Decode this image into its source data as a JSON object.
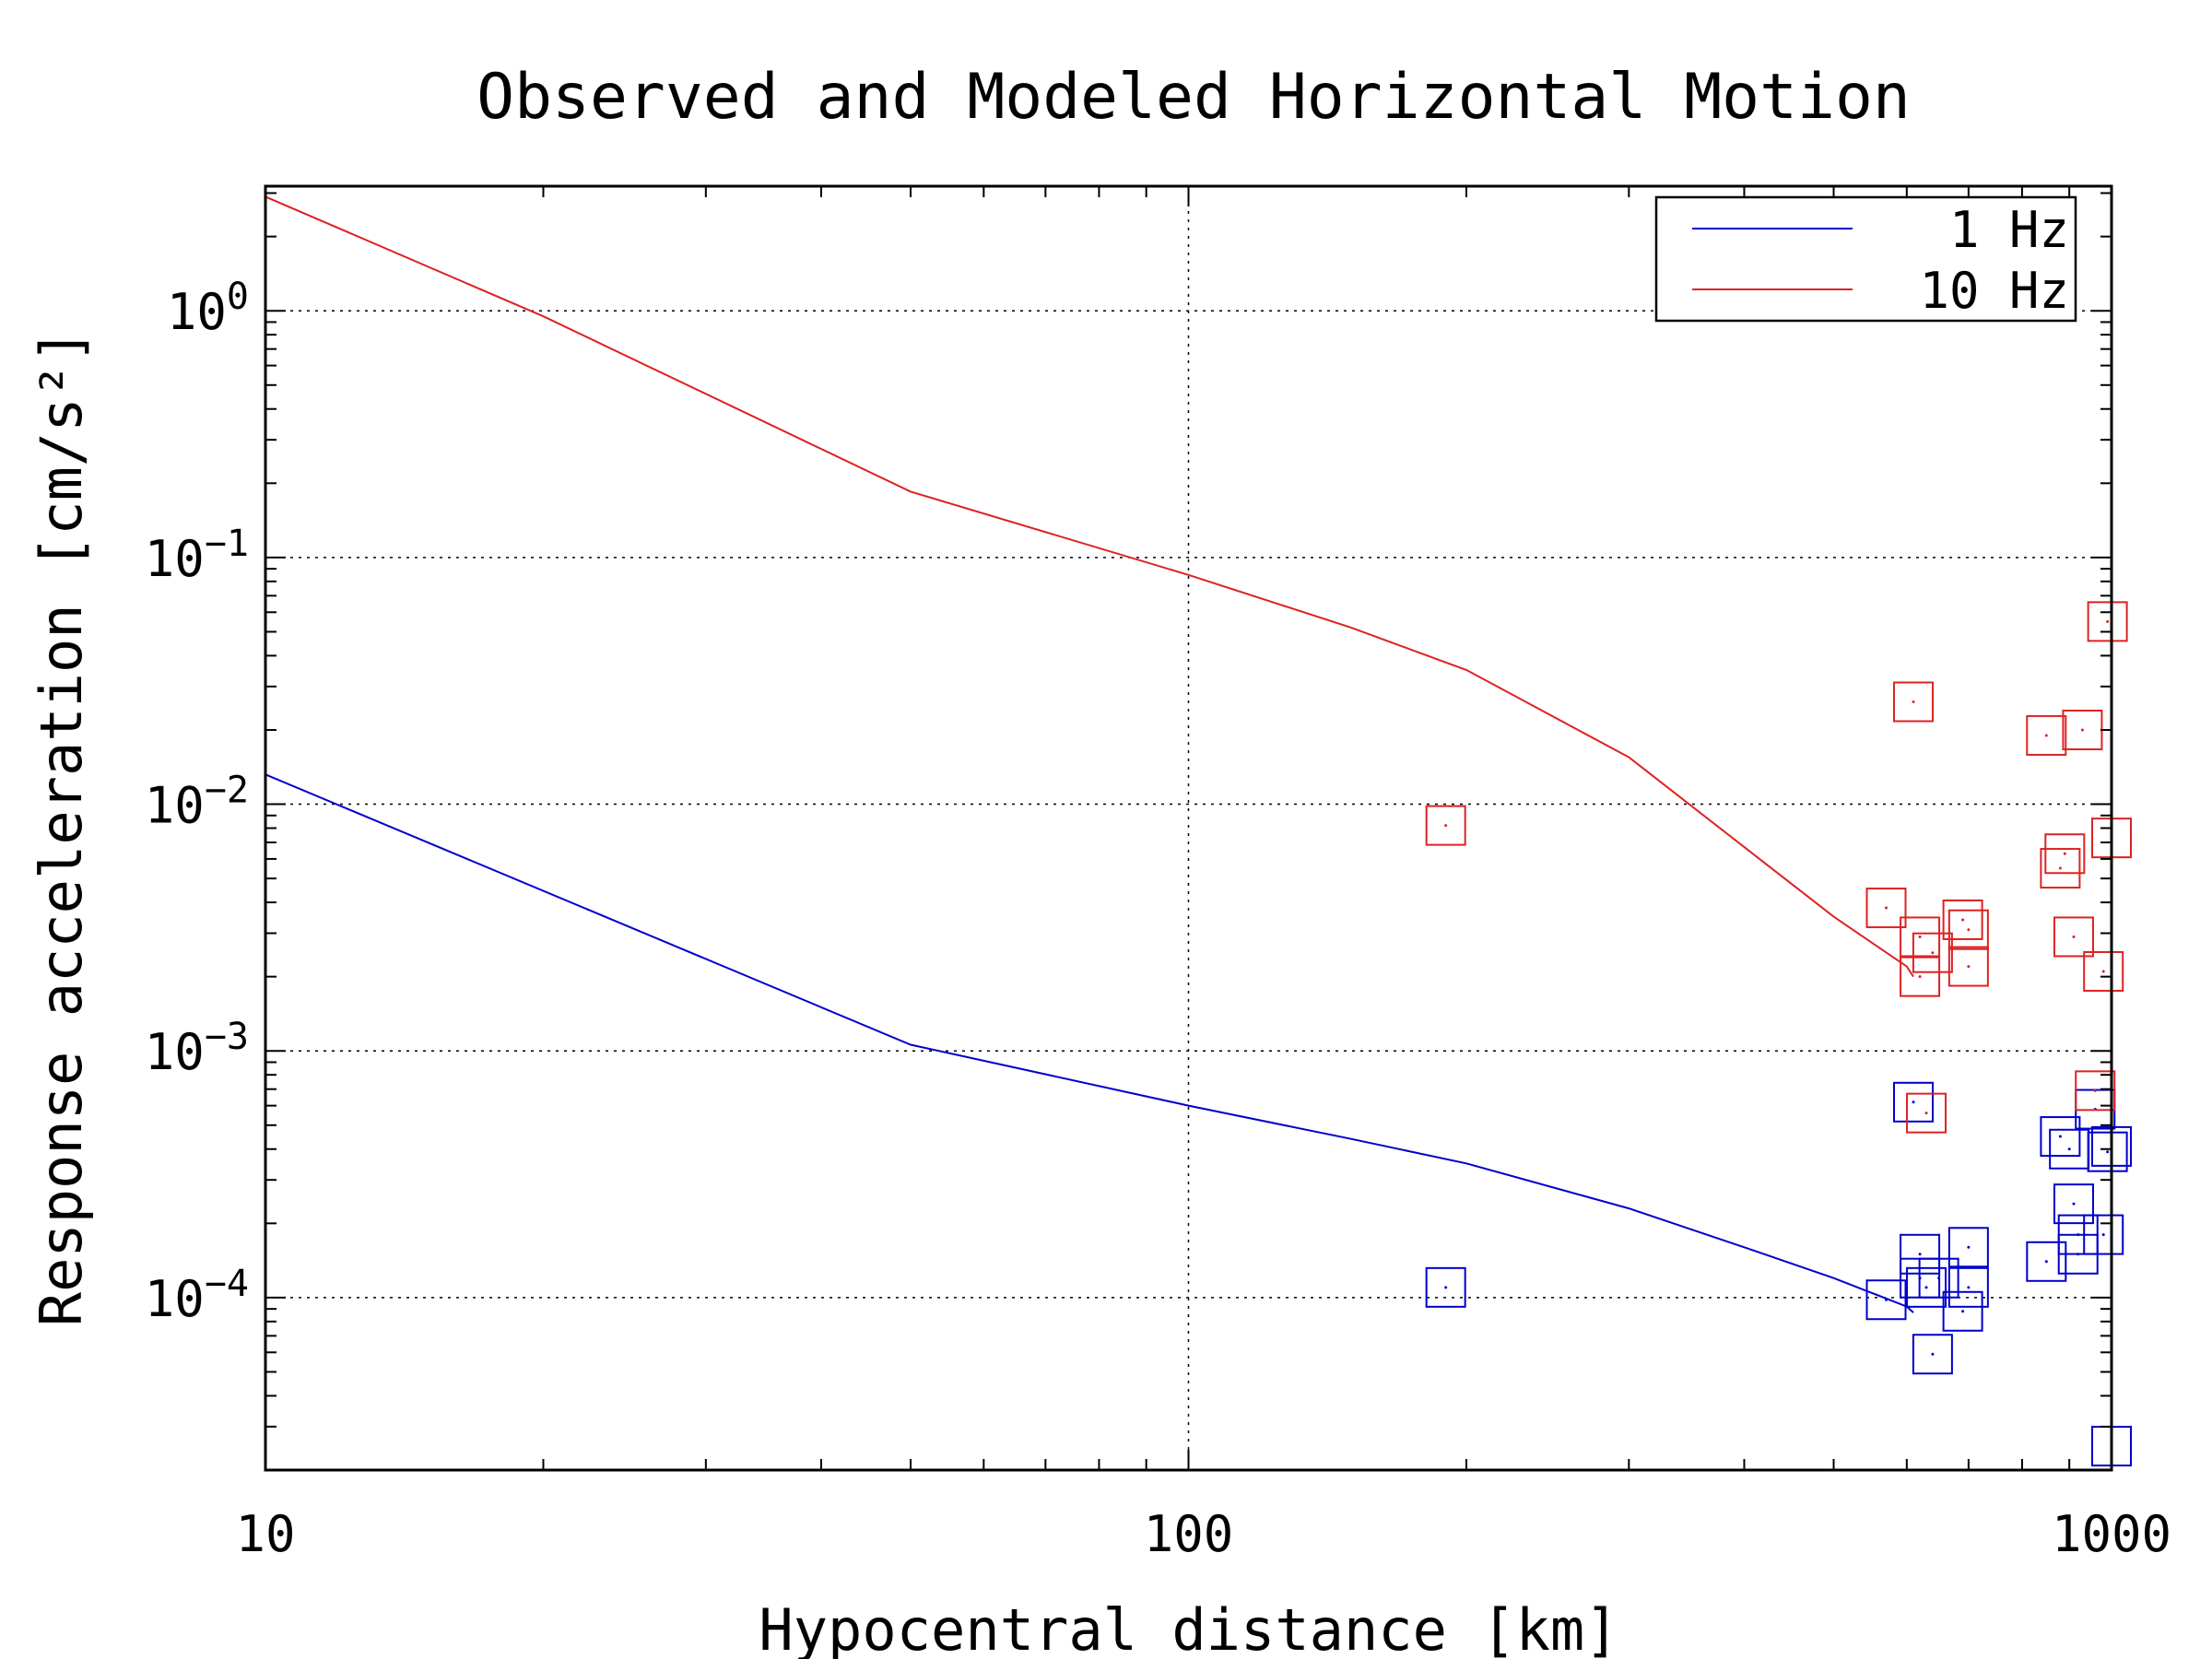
{
  "chart_data": {
    "type": "scatter",
    "title": "Observed and Modeled Horizontal Motion",
    "xlabel": "Hypocentral distance [km]",
    "ylabel": "Response acceleration [cm/s²]",
    "xscale": "log",
    "yscale": "log",
    "xlim": [
      10,
      1000
    ],
    "ylim": [
      2e-05,
      3.2
    ],
    "grid": true,
    "legend_position": "top-right",
    "x_ticks": [
      {
        "value": 10,
        "label": "10"
      },
      {
        "value": 100,
        "label": "100"
      },
      {
        "value": 1000,
        "label": "1000"
      }
    ],
    "y_ticks": [
      {
        "value": 1,
        "base": "10",
        "exp": "0"
      },
      {
        "value": 0.1,
        "base": "10",
        "exp": "−1"
      },
      {
        "value": 0.01,
        "base": "10",
        "exp": "−2"
      },
      {
        "value": 0.001,
        "base": "10",
        "exp": "−3"
      },
      {
        "value": 0.0001,
        "base": "10",
        "exp": "−4"
      }
    ],
    "series": [
      {
        "name": "1 Hz",
        "color": "#0000cc",
        "model_line": {
          "x": [
            10,
            50,
            100,
            150,
            200,
            300,
            400,
            500,
            600,
            610
          ],
          "y": [
            0.0132,
            0.00106,
            0.0006,
            0.00044,
            0.00035,
            0.00023,
            0.00016,
            0.00012,
            9.2e-05,
            8.7e-05
          ]
        },
        "observed": {
          "x": [
            190,
            570,
            610,
            620,
            620,
            630,
            640,
            650,
            690,
            700,
            700,
            850,
            880,
            900,
            910,
            920,
            920,
            960,
            980,
            990,
            1000,
            1000
          ],
          "y": [
            0.00011,
            9.8e-05,
            0.00062,
            0.00015,
            0.00012,
            0.00011,
            5.9e-05,
            0.00012,
            8.8e-05,
            0.00016,
            0.00011,
            0.00014,
            0.00045,
            0.0004,
            0.00024,
            0.00018,
            0.00015,
            0.00058,
            0.00018,
            0.00039,
            2.5e-05,
            0.00041
          ]
        }
      },
      {
        "name": "10 Hz",
        "color": "#dd2222",
        "model_line": {
          "x": [
            10,
            20,
            50,
            100,
            150,
            200,
            300,
            400,
            500,
            600,
            610
          ],
          "y": [
            2.9,
            0.95,
            0.185,
            0.085,
            0.052,
            0.035,
            0.0155,
            0.0067,
            0.0035,
            0.0022,
            0.002
          ]
        },
        "observed": {
          "x": [
            190,
            570,
            610,
            620,
            620,
            630,
            640,
            690,
            700,
            700,
            850,
            880,
            890,
            910,
            930,
            960,
            980,
            990,
            1000
          ],
          "y": [
            0.0082,
            0.0038,
            0.026,
            0.0029,
            0.002,
            0.00056,
            0.0025,
            0.0034,
            0.0031,
            0.0022,
            0.019,
            0.0055,
            0.0063,
            0.0029,
            0.02,
            0.00069,
            0.0021,
            0.055,
            0.0073
          ]
        }
      }
    ]
  }
}
